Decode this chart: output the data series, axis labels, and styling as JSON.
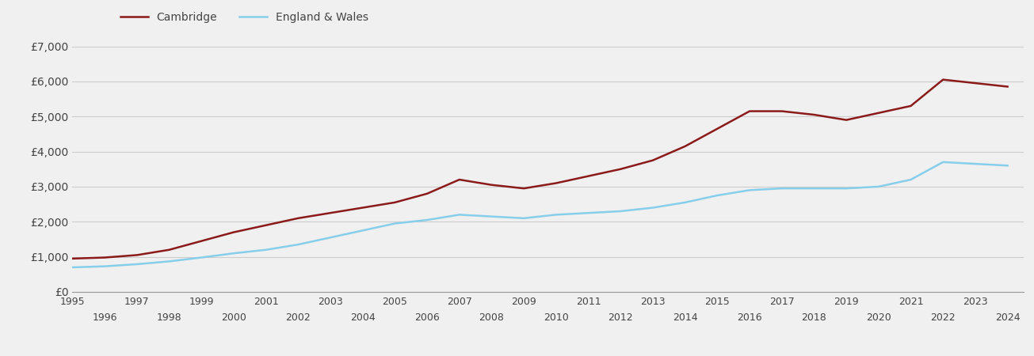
{
  "years": [
    1995,
    1996,
    1997,
    1998,
    1999,
    2000,
    2001,
    2002,
    2003,
    2004,
    2005,
    2006,
    2007,
    2008,
    2009,
    2010,
    2011,
    2012,
    2013,
    2014,
    2015,
    2016,
    2017,
    2018,
    2019,
    2020,
    2021,
    2022,
    2023,
    2024
  ],
  "cambridge": [
    950,
    980,
    1050,
    1200,
    1450,
    1700,
    1900,
    2100,
    2250,
    2400,
    2550,
    2800,
    3200,
    3050,
    2950,
    3100,
    3300,
    3500,
    3750,
    4150,
    4650,
    5150,
    5150,
    5050,
    4900,
    5100,
    5300,
    6050,
    5950,
    5850
  ],
  "england_wales": [
    700,
    730,
    790,
    870,
    980,
    1100,
    1200,
    1350,
    1550,
    1750,
    1950,
    2050,
    2200,
    2150,
    2100,
    2200,
    2250,
    2300,
    2400,
    2550,
    2750,
    2900,
    2950,
    2950,
    2950,
    3000,
    3200,
    3700,
    3650,
    3600
  ],
  "ylim": [
    0,
    7000
  ],
  "yticks": [
    0,
    1000,
    2000,
    3000,
    4000,
    5000,
    6000,
    7000
  ],
  "ytick_labels": [
    "£0",
    "£1,000",
    "£2,000",
    "£3,000",
    "£4,000",
    "£5,000",
    "£6,000",
    "£7,000"
  ],
  "cambridge_color": "#8B1A1A",
  "england_wales_color": "#87CEEB",
  "background_color": "#f0f0f0",
  "legend_labels": [
    "Cambridge",
    "England & Wales"
  ],
  "line_width": 1.8,
  "grid_color": "#cccccc",
  "tick_label_color": "#444444",
  "odd_years": [
    1995,
    1997,
    1999,
    2001,
    2003,
    2005,
    2007,
    2009,
    2011,
    2013,
    2015,
    2017,
    2019,
    2021,
    2023
  ],
  "even_years": [
    1996,
    1998,
    2000,
    2002,
    2004,
    2006,
    2008,
    2010,
    2012,
    2014,
    2016,
    2018,
    2020,
    2022,
    2024
  ],
  "xlim": [
    1995,
    2024.5
  ]
}
